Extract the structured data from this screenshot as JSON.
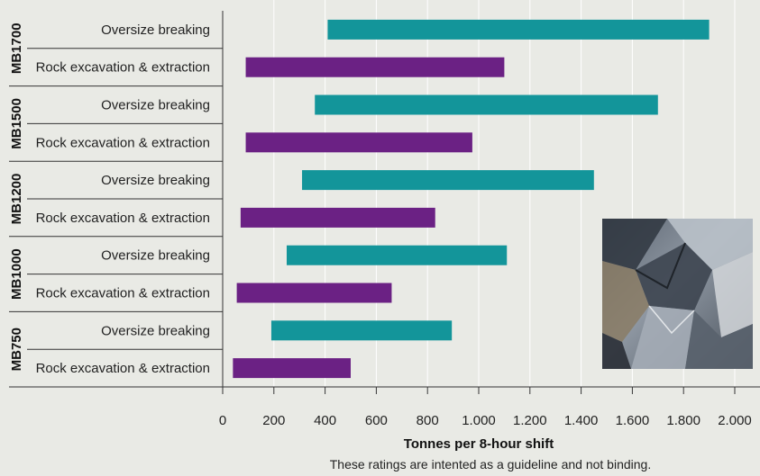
{
  "chart_data": {
    "type": "bar",
    "orientation": "horizontal-range",
    "xlabel": "Tonnes per 8-hour shift",
    "note": "These ratings are intented as a guideline and not binding.",
    "xlim": [
      0,
      2100
    ],
    "x_ticks": [
      0,
      200,
      400,
      600,
      800,
      1000,
      1200,
      1400,
      1600,
      1800,
      2000
    ],
    "x_tick_labels": [
      "0",
      "200",
      "400",
      "600",
      "800",
      "1.000",
      "1.200",
      "1.400",
      "1.600",
      "1.800",
      "2.000"
    ],
    "grid": true,
    "colors": {
      "Oversize breaking": "#13959a",
      "Rock excavation & extraction": "#6b2184"
    },
    "groups": [
      {
        "name": "MB1700",
        "bars": [
          {
            "label": "Oversize breaking",
            "start": 410,
            "end": 1900
          },
          {
            "label": "Rock excavation & extraction",
            "start": 90,
            "end": 1100
          }
        ]
      },
      {
        "name": "MB1500",
        "bars": [
          {
            "label": "Oversize breaking",
            "start": 360,
            "end": 1700
          },
          {
            "label": "Rock excavation & extraction",
            "start": 90,
            "end": 975
          }
        ]
      },
      {
        "name": "MB1200",
        "bars": [
          {
            "label": "Oversize breaking",
            "start": 310,
            "end": 1450
          },
          {
            "label": "Rock excavation & extraction",
            "start": 70,
            "end": 830
          }
        ]
      },
      {
        "name": "MB1000",
        "bars": [
          {
            "label": "Oversize breaking",
            "start": 250,
            "end": 1110
          },
          {
            "label": "Rock excavation & extraction",
            "start": 55,
            "end": 660
          }
        ]
      },
      {
        "name": "MB750",
        "bars": [
          {
            "label": "Oversize breaking",
            "start": 190,
            "end": 895
          },
          {
            "label": "Rock excavation & extraction",
            "start": 40,
            "end": 500
          }
        ]
      }
    ]
  },
  "photo": {
    "subject": "rock-photo"
  }
}
